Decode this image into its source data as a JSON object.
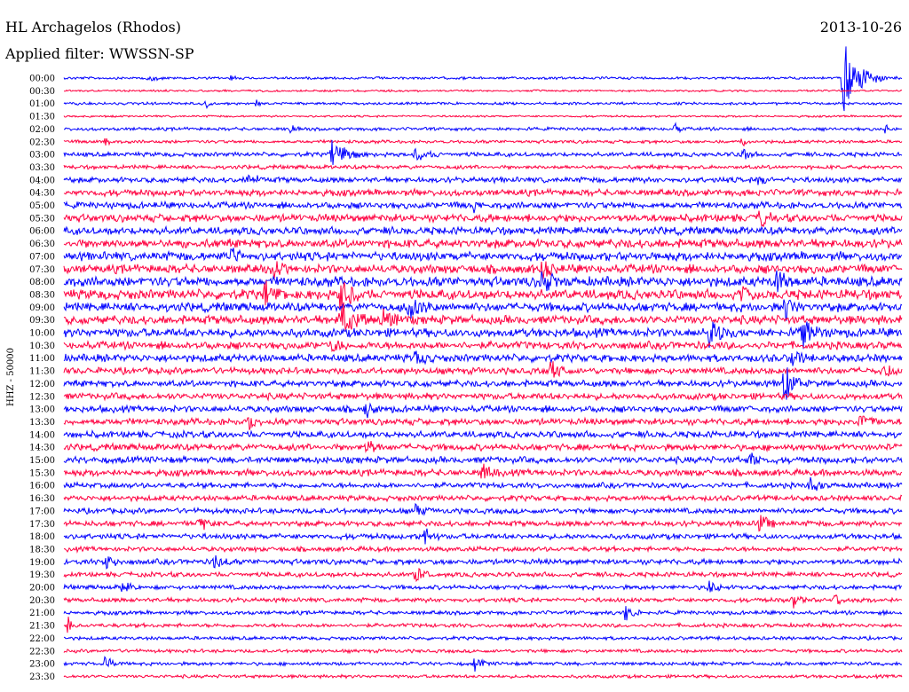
{
  "chart_data": {
    "type": "line",
    "title": "HL Archagelos (Rhodos)",
    "date": "2013-10-26",
    "filter_label": "Applied filter: WWSSN-SP",
    "ylabel": "HHZ - 50000",
    "colors": {
      "even": "#0000ff",
      "odd": "#ff0040",
      "text": "#000000"
    },
    "row_labels": [
      "00:00",
      "00:30",
      "01:00",
      "01:30",
      "02:00",
      "02:30",
      "03:00",
      "03:30",
      "04:00",
      "04:30",
      "05:00",
      "05:30",
      "06:00",
      "06:30",
      "07:00",
      "07:30",
      "08:00",
      "08:30",
      "09:00",
      "09:30",
      "10:00",
      "10:30",
      "11:00",
      "11:30",
      "12:00",
      "12:30",
      "13:00",
      "13:30",
      "14:00",
      "14:30",
      "15:00",
      "15:30",
      "16:00",
      "16:30",
      "17:00",
      "17:30",
      "18:00",
      "18:30",
      "19:00",
      "19:30",
      "20:00",
      "20:30",
      "21:00",
      "21:30",
      "22:00",
      "22:30",
      "23:00",
      "23:30"
    ],
    "noise": [
      1.2,
      0.9,
      1.2,
      0.9,
      1.5,
      1.5,
      2,
      1.8,
      2.5,
      3,
      3,
      3.5,
      3.5,
      4,
      4,
      4,
      4.5,
      4.5,
      4,
      4,
      4,
      3.5,
      3.5,
      3,
      3,
      3,
      3,
      3,
      3,
      3,
      3,
      3,
      2.5,
      2.5,
      2.5,
      2.5,
      2.5,
      2.2,
      2.5,
      2.2,
      2,
      2,
      1.8,
      1.8,
      1.6,
      1.6,
      1.6,
      1.5
    ],
    "events": [
      {
        "row": 0,
        "x": 0.93,
        "amp": 45,
        "dur": 0.05
      },
      {
        "row": 0,
        "x": 0.1,
        "amp": 5,
        "dur": 0.02
      },
      {
        "row": 0,
        "x": 0.2,
        "amp": 4,
        "dur": 0.01
      },
      {
        "row": 2,
        "x": 0.17,
        "amp": 7,
        "dur": 0.01
      },
      {
        "row": 2,
        "x": 0.23,
        "amp": 5,
        "dur": 0.01
      },
      {
        "row": 4,
        "x": 0.27,
        "amp": 10,
        "dur": 0.01
      },
      {
        "row": 4,
        "x": 0.73,
        "amp": 8,
        "dur": 0.01
      },
      {
        "row": 4,
        "x": 0.98,
        "amp": 6,
        "dur": 0.01
      },
      {
        "row": 5,
        "x": 0.05,
        "amp": 8,
        "dur": 0.01
      },
      {
        "row": 5,
        "x": 0.81,
        "amp": 9,
        "dur": 0.01
      },
      {
        "row": 6,
        "x": 0.32,
        "amp": 18,
        "dur": 0.04
      },
      {
        "row": 6,
        "x": 0.42,
        "amp": 9,
        "dur": 0.03
      },
      {
        "row": 6,
        "x": 0.81,
        "amp": 8,
        "dur": 0.02
      },
      {
        "row": 8,
        "x": 0.22,
        "amp": 9,
        "dur": 0.02
      },
      {
        "row": 8,
        "x": 0.83,
        "amp": 10,
        "dur": 0.02
      },
      {
        "row": 10,
        "x": 0.49,
        "amp": 9,
        "dur": 0.01
      },
      {
        "row": 11,
        "x": 0.83,
        "amp": 12,
        "dur": 0.02
      },
      {
        "row": 14,
        "x": 0.2,
        "amp": 12,
        "dur": 0.02
      },
      {
        "row": 15,
        "x": 0.25,
        "amp": 10,
        "dur": 0.02
      },
      {
        "row": 15,
        "x": 0.57,
        "amp": 12,
        "dur": 0.02
      },
      {
        "row": 16,
        "x": 0.57,
        "amp": 14,
        "dur": 0.03
      },
      {
        "row": 16,
        "x": 0.85,
        "amp": 20,
        "dur": 0.02
      },
      {
        "row": 17,
        "x": 0.24,
        "amp": 16,
        "dur": 0.02
      },
      {
        "row": 17,
        "x": 0.33,
        "amp": 22,
        "dur": 0.03
      },
      {
        "row": 17,
        "x": 0.81,
        "amp": 16,
        "dur": 0.02
      },
      {
        "row": 18,
        "x": 0.41,
        "amp": 20,
        "dur": 0.03
      },
      {
        "row": 18,
        "x": 0.86,
        "amp": 18,
        "dur": 0.02
      },
      {
        "row": 19,
        "x": 0.33,
        "amp": 24,
        "dur": 0.04
      },
      {
        "row": 19,
        "x": 0.38,
        "amp": 12,
        "dur": 0.03
      },
      {
        "row": 20,
        "x": 0.77,
        "amp": 18,
        "dur": 0.03
      },
      {
        "row": 20,
        "x": 0.88,
        "amp": 22,
        "dur": 0.03
      },
      {
        "row": 21,
        "x": 0.32,
        "amp": 10,
        "dur": 0.02
      },
      {
        "row": 22,
        "x": 0.42,
        "amp": 10,
        "dur": 0.02
      },
      {
        "row": 22,
        "x": 0.87,
        "amp": 14,
        "dur": 0.02
      },
      {
        "row": 23,
        "x": 0.58,
        "amp": 12,
        "dur": 0.02
      },
      {
        "row": 23,
        "x": 0.98,
        "amp": 10,
        "dur": 0.02
      },
      {
        "row": 24,
        "x": 0.86,
        "amp": 30,
        "dur": 0.02
      },
      {
        "row": 26,
        "x": 0.36,
        "amp": 14,
        "dur": 0.02
      },
      {
        "row": 27,
        "x": 0.22,
        "amp": 10,
        "dur": 0.02
      },
      {
        "row": 27,
        "x": 0.95,
        "amp": 10,
        "dur": 0.03
      },
      {
        "row": 29,
        "x": 0.36,
        "amp": 12,
        "dur": 0.02
      },
      {
        "row": 30,
        "x": 0.82,
        "amp": 10,
        "dur": 0.02
      },
      {
        "row": 31,
        "x": 0.5,
        "amp": 10,
        "dur": 0.02
      },
      {
        "row": 32,
        "x": 0.89,
        "amp": 10,
        "dur": 0.02
      },
      {
        "row": 34,
        "x": 0.42,
        "amp": 10,
        "dur": 0.02
      },
      {
        "row": 35,
        "x": 0.16,
        "amp": 10,
        "dur": 0.02
      },
      {
        "row": 35,
        "x": 0.83,
        "amp": 14,
        "dur": 0.02
      },
      {
        "row": 36,
        "x": 0.43,
        "amp": 14,
        "dur": 0.02
      },
      {
        "row": 38,
        "x": 0.05,
        "amp": 10,
        "dur": 0.02
      },
      {
        "row": 38,
        "x": 0.18,
        "amp": 10,
        "dur": 0.02
      },
      {
        "row": 39,
        "x": 0.42,
        "amp": 12,
        "dur": 0.02
      },
      {
        "row": 40,
        "x": 0.07,
        "amp": 10,
        "dur": 0.02
      },
      {
        "row": 40,
        "x": 0.77,
        "amp": 8,
        "dur": 0.02
      },
      {
        "row": 41,
        "x": 0.87,
        "amp": 10,
        "dur": 0.02
      },
      {
        "row": 41,
        "x": 0.92,
        "amp": 8,
        "dur": 0.02
      },
      {
        "row": 42,
        "x": 0.67,
        "amp": 12,
        "dur": 0.02
      },
      {
        "row": 43,
        "x": 0.005,
        "amp": 12,
        "dur": 0.01
      },
      {
        "row": 46,
        "x": 0.05,
        "amp": 10,
        "dur": 0.02
      },
      {
        "row": 46,
        "x": 0.49,
        "amp": 10,
        "dur": 0.02
      }
    ]
  }
}
